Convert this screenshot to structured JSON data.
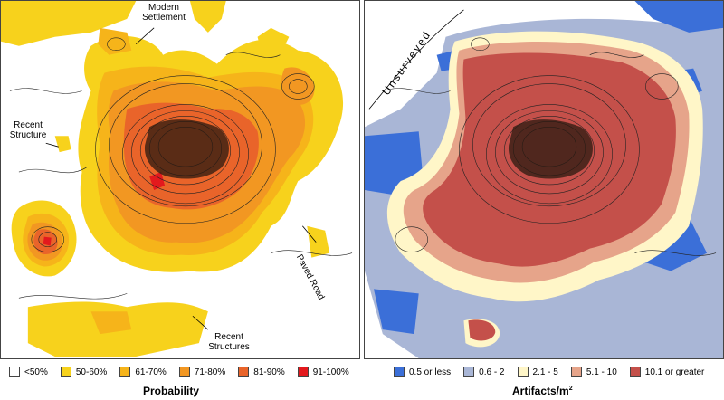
{
  "left_map": {
    "labels": {
      "modern_settlement": "Modern Settlement",
      "recent_structure": "Recent Structure",
      "paved_road": "Paved Road",
      "recent_structures": "Recent Structures"
    },
    "legend": {
      "title": "Probability",
      "items": [
        {
          "label": "<50%",
          "color": "#ffffff"
        },
        {
          "label": "50-60%",
          "color": "#f7d21c"
        },
        {
          "label": "61-70%",
          "color": "#f6b41a"
        },
        {
          "label": "71-80%",
          "color": "#f29722"
        },
        {
          "label": "81-90%",
          "color": "#e9642a"
        },
        {
          "label": "91-100%",
          "color": "#e3191d"
        }
      ]
    }
  },
  "right_map": {
    "labels": {
      "unsurveyed": "Unsurveyed"
    },
    "legend": {
      "title": "Artifacts/m",
      "title_superscript": "2",
      "items": [
        {
          "label": "0.5 or less",
          "color": "#3b6fd8"
        },
        {
          "label": "0.6 - 2",
          "color": "#a9b6d6"
        },
        {
          "label": "2.1 - 5",
          "color": "#fff6c8"
        },
        {
          "label": "5.1 - 10",
          "color": "#e6a48a"
        },
        {
          "label": "10.1 or greater",
          "color": "#c4504a"
        }
      ]
    }
  }
}
